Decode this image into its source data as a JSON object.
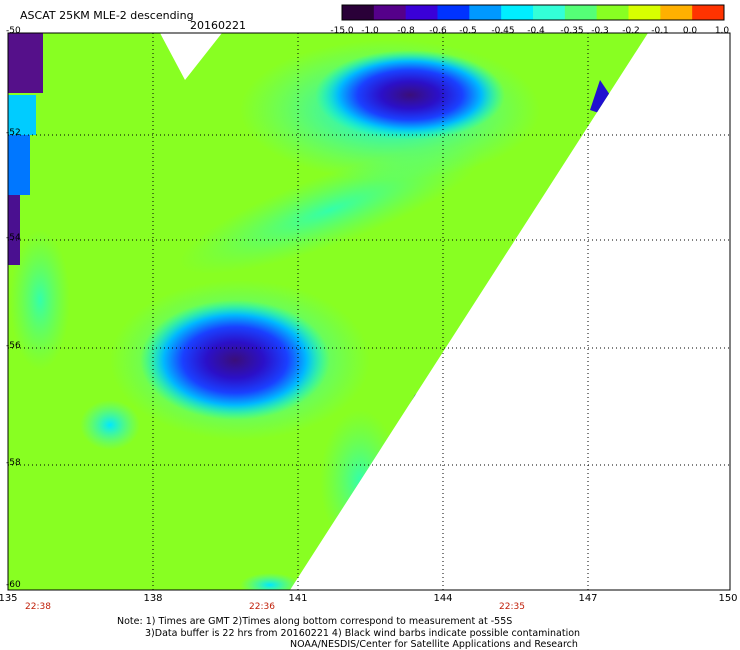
{
  "header": {
    "title": "ASCAT 25KM MLE-2 descending",
    "date": "20160221"
  },
  "colorbar": {
    "labels": [
      "-15.0",
      "-1.0",
      "-0.8",
      "-0.6",
      "-0.5",
      "-0.45",
      "-0.4",
      "-0.35",
      "-0.3",
      "-0.2",
      "-0.1",
      "0.0",
      "1.0"
    ],
    "colors": [
      "#2a0038",
      "#55008a",
      "#3a00d8",
      "#0033ff",
      "#0099ff",
      "#00eeff",
      "#33ffd8",
      "#55ff77",
      "#88ff22",
      "#d8ff00",
      "#ffb000",
      "#ff3300"
    ]
  },
  "map": {
    "lat_labels": [
      "-50",
      "-52",
      "-54",
      "-56",
      "-58",
      "-60"
    ],
    "lon_labels": [
      "135",
      "138",
      "141",
      "144",
      "147",
      "150"
    ],
    "time_labels": [
      "22:38",
      "22:36",
      "22:35"
    ],
    "swath_color": "#88ff22"
  },
  "notes": {
    "line1": "Note: 1) Times are GMT 2)Times along bottom correspond to measurement at -55S",
    "line2": "3)Data buffer is 22 hrs from 20160221 4) Black wind barbs indicate possible contamination",
    "line3": "NOAA/NESDIS/Center for Satellite Applications and Research"
  }
}
